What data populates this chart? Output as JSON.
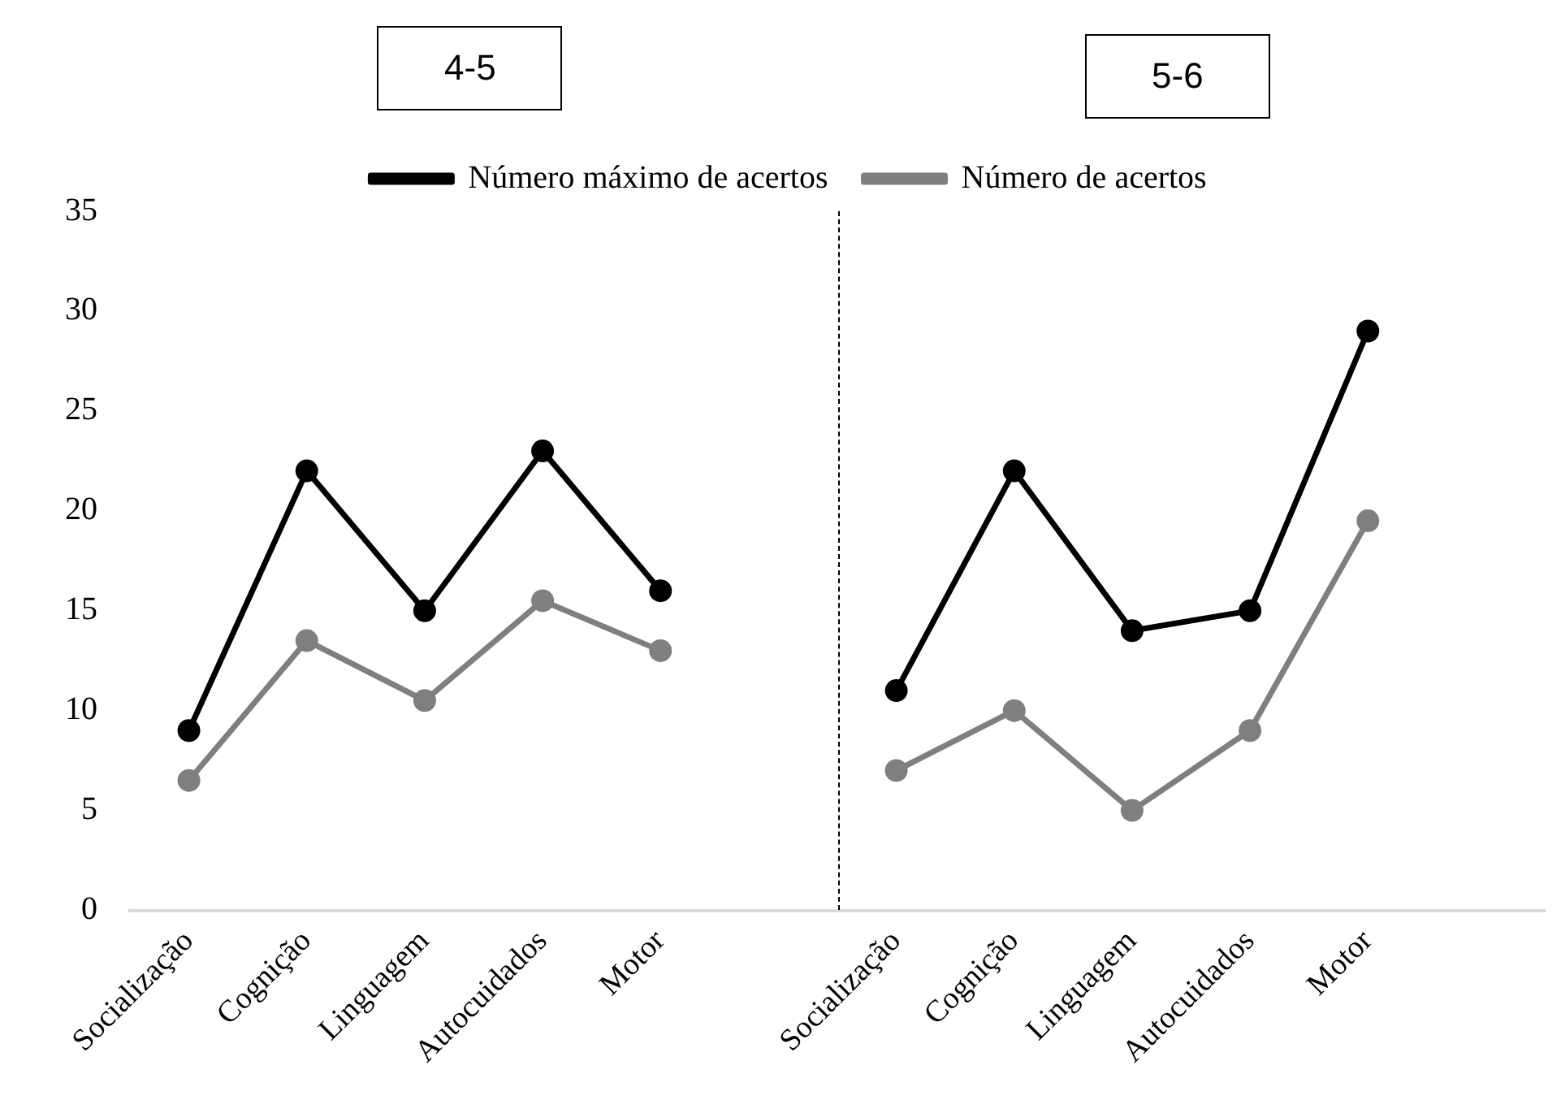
{
  "chart_data": {
    "type": "line",
    "categories": [
      "Socialização",
      "Cognição",
      "Linguagem",
      "Autocuidados",
      "Motor",
      null,
      "Socialização",
      "Cognição",
      "Linguagem",
      "Autocuidados",
      "Motor",
      null
    ],
    "series": [
      {
        "name": "Número máximo de acertos",
        "color": "#000000",
        "values": [
          9,
          22,
          15,
          23,
          16,
          null,
          11,
          22,
          14,
          15,
          29,
          null
        ]
      },
      {
        "name": "Número de acertos",
        "color": "#7f7f7f",
        "values": [
          6.5,
          13.5,
          10.5,
          15.5,
          13,
          null,
          7,
          10,
          5,
          9,
          19.5,
          null
        ]
      }
    ],
    "annotations": [
      "4-5",
      "5-6"
    ],
    "ylim": [
      0,
      35
    ],
    "yticks": [
      0,
      5,
      10,
      15,
      20,
      25,
      30,
      35
    ],
    "grid": false,
    "legend": "top",
    "marker": "circle",
    "line_style": "solid"
  }
}
